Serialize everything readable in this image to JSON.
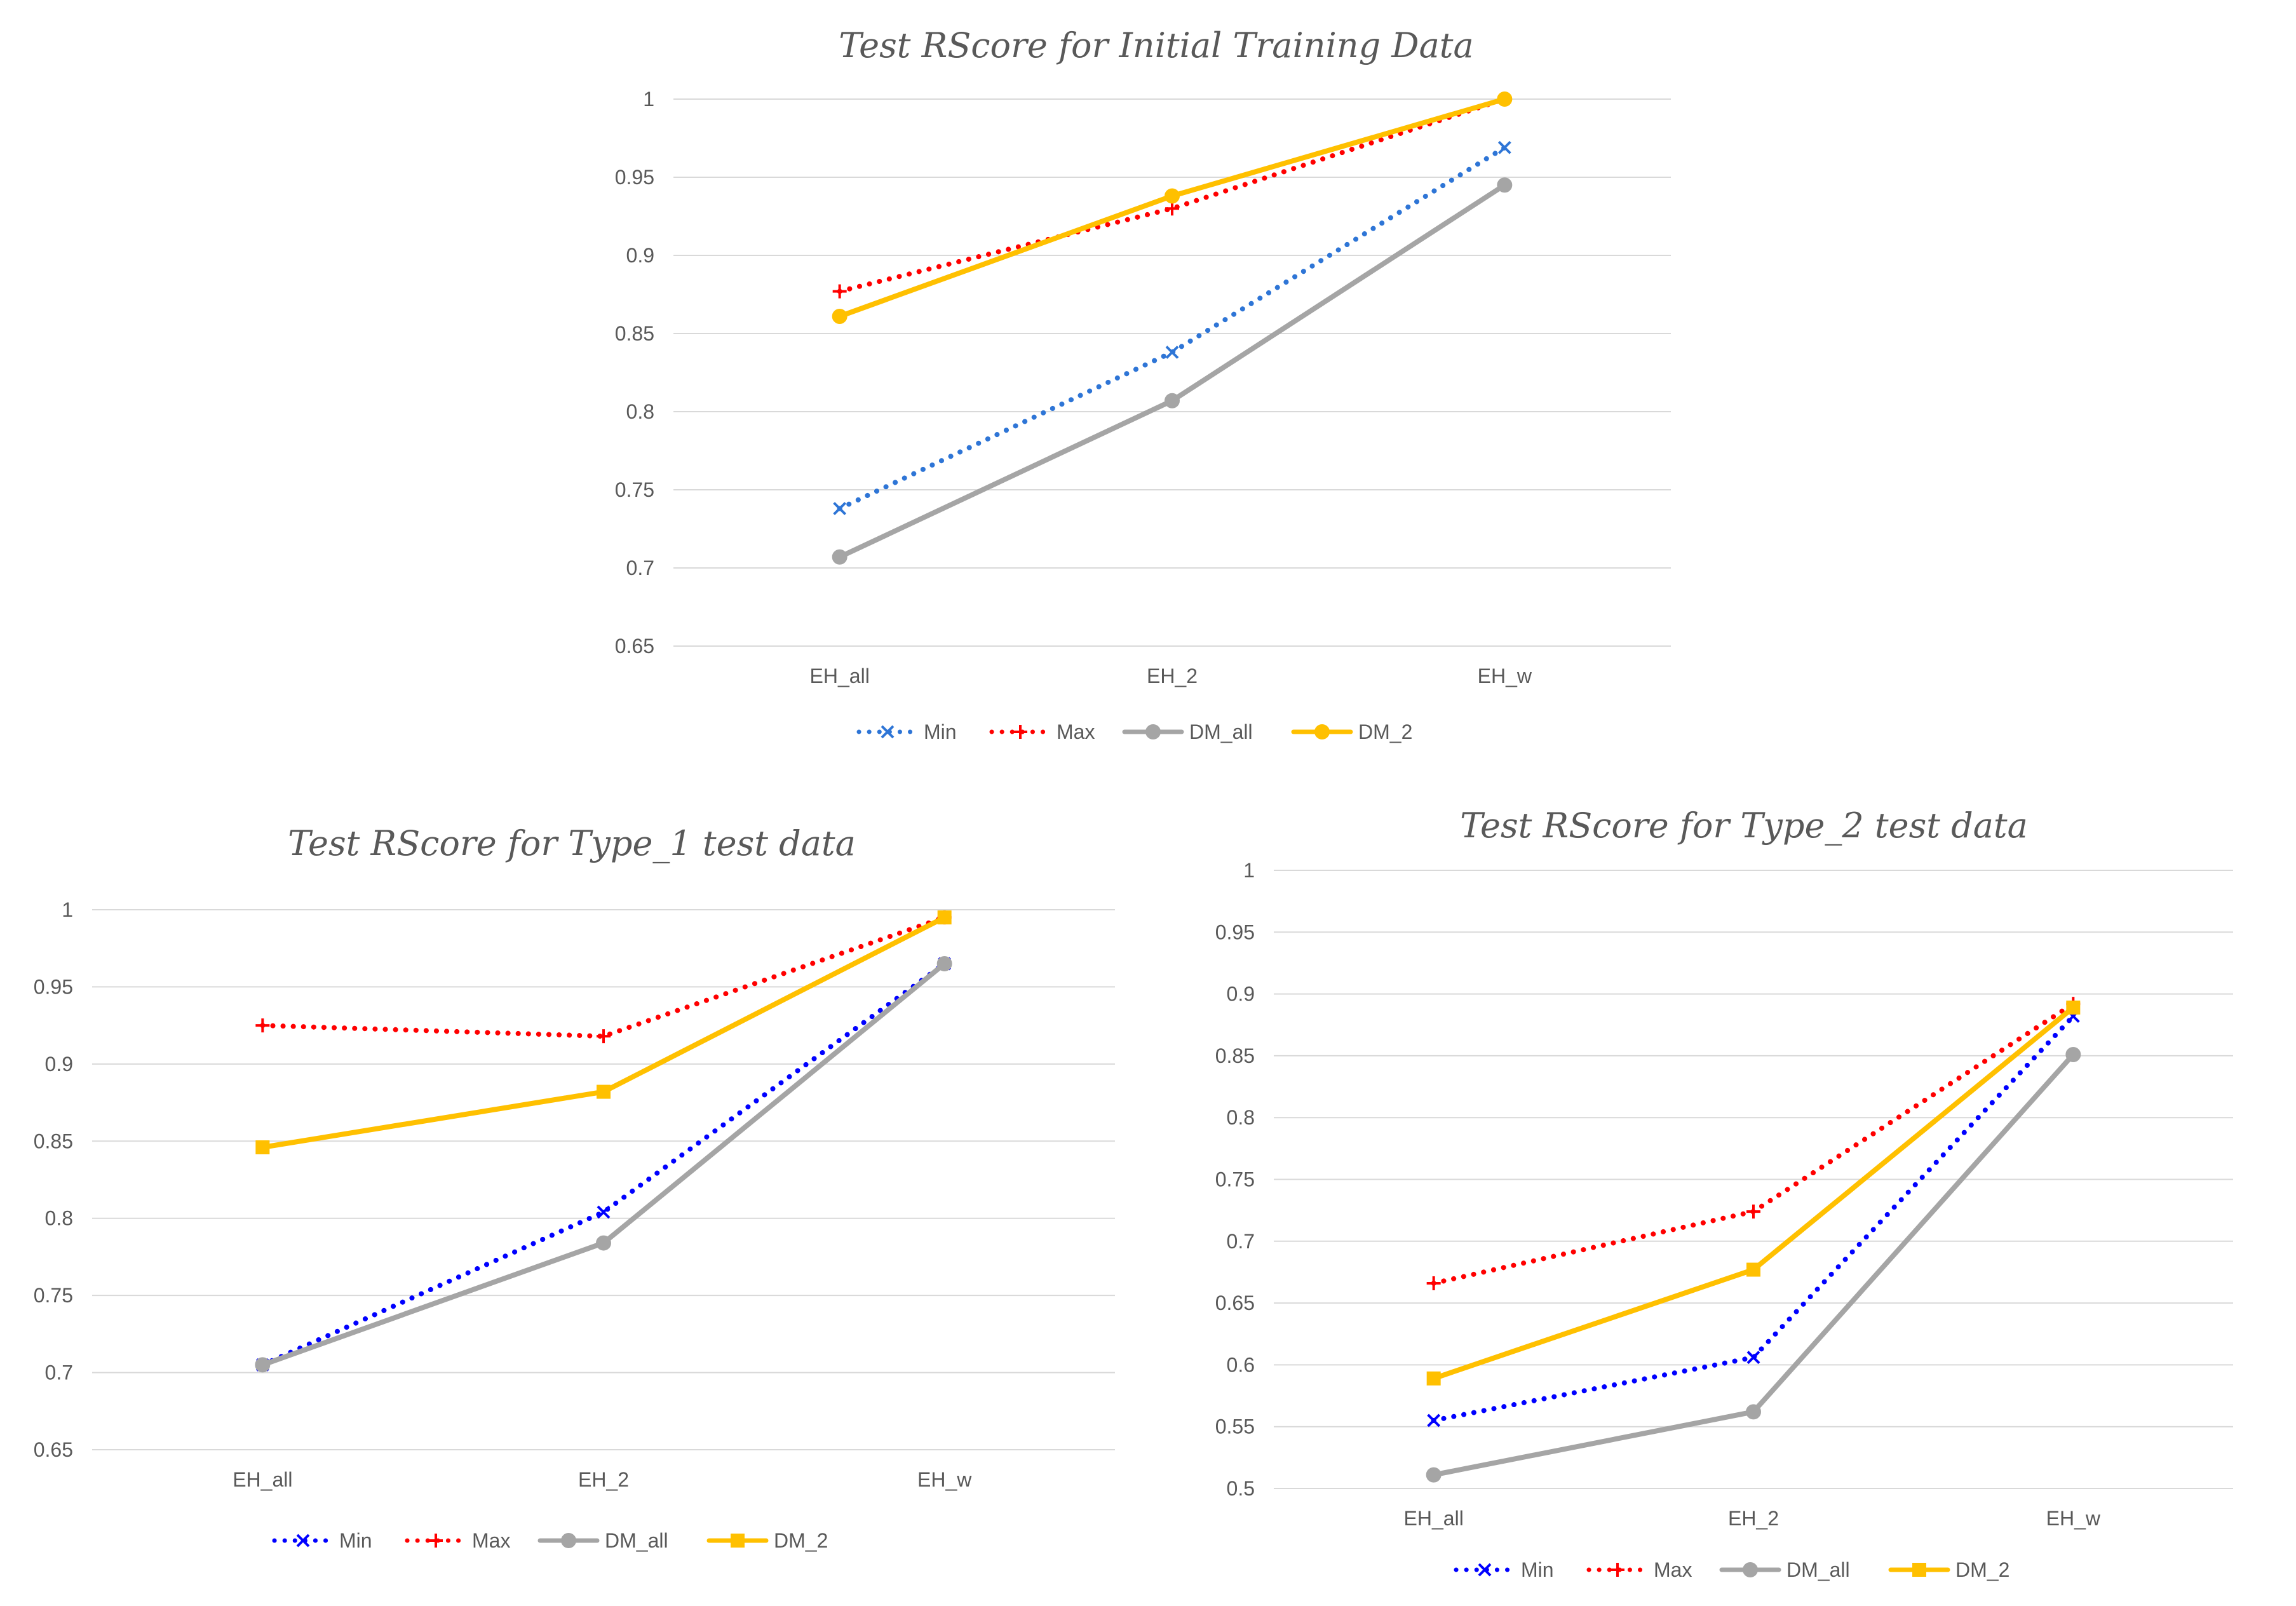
{
  "chart_data": [
    {
      "type": "line",
      "title": "Test RScore for Initial Training Data",
      "categories": [
        "EH_all",
        "EH_2",
        "EH_w"
      ],
      "xlabel": "",
      "ylabel": "",
      "ylim": [
        0.65,
        1
      ],
      "yticks": [
        0.65,
        0.7,
        0.75,
        0.8,
        0.85,
        0.9,
        0.95,
        1
      ],
      "ytick_labels": [
        "0.65",
        "0.7",
        "0.75",
        "0.8",
        "0.85",
        "0.9",
        "0.95",
        "1"
      ],
      "grid": true,
      "legend": "bottom",
      "series": [
        {
          "name": "Min",
          "values": [
            0.738,
            0.838,
            0.969
          ],
          "color": "#2E75D6",
          "style": "dotted",
          "marker": "x"
        },
        {
          "name": "Max",
          "values": [
            0.877,
            0.93,
            1.0
          ],
          "color": "#FF0000",
          "style": "dotted",
          "marker": "plus"
        },
        {
          "name": "DM_all",
          "values": [
            0.707,
            0.807,
            0.945
          ],
          "color": "#A5A5A5",
          "style": "solid",
          "marker": "circle"
        },
        {
          "name": "DM_2",
          "values": [
            0.861,
            0.938,
            1.0
          ],
          "color": "#FFC000",
          "style": "solid",
          "marker": "circle"
        }
      ]
    },
    {
      "type": "line",
      "title": "Test RScore for Type_1 test data",
      "categories": [
        "EH_all",
        "EH_2",
        "EH_w"
      ],
      "xlabel": "",
      "ylabel": "",
      "ylim": [
        0.65,
        1
      ],
      "yticks": [
        0.65,
        0.7,
        0.75,
        0.8,
        0.85,
        0.9,
        0.95,
        1
      ],
      "ytick_labels": [
        "0.65",
        "0.7",
        "0.75",
        "0.8",
        "0.85",
        "0.9",
        "0.95",
        "1"
      ],
      "grid": true,
      "legend": "bottom",
      "series": [
        {
          "name": "Min",
          "values": [
            0.705,
            0.804,
            0.965
          ],
          "color": "#0000FF",
          "style": "dotted",
          "marker": "x"
        },
        {
          "name": "Max",
          "values": [
            0.925,
            0.918,
            0.995
          ],
          "color": "#FF0000",
          "style": "dotted",
          "marker": "plus"
        },
        {
          "name": "DM_all",
          "values": [
            0.705,
            0.784,
            0.965
          ],
          "color": "#A5A5A5",
          "style": "solid",
          "marker": "circle"
        },
        {
          "name": "DM_2",
          "values": [
            0.846,
            0.882,
            0.995
          ],
          "color": "#FFC000",
          "style": "solid",
          "marker": "square"
        }
      ]
    },
    {
      "type": "line",
      "title": "Test RScore for Type_2 test data",
      "categories": [
        "EH_all",
        "EH_2",
        "EH_w"
      ],
      "xlabel": "",
      "ylabel": "",
      "ylim": [
        0.5,
        1
      ],
      "yticks": [
        0.5,
        0.55,
        0.6,
        0.65,
        0.7,
        0.75,
        0.8,
        0.85,
        0.9,
        0.95,
        1
      ],
      "ytick_labels": [
        "0.5",
        "0.55",
        "0.6",
        "0.65",
        "0.7",
        "0.75",
        "0.8",
        "0.85",
        "0.9",
        "0.95",
        "1"
      ],
      "grid": true,
      "legend": "bottom",
      "series": [
        {
          "name": "Min",
          "values": [
            0.555,
            0.606,
            0.882
          ],
          "color": "#0000FF",
          "style": "dotted",
          "marker": "x"
        },
        {
          "name": "Max",
          "values": [
            0.666,
            0.724,
            0.892
          ],
          "color": "#FF0000",
          "style": "dotted",
          "marker": "plus"
        },
        {
          "name": "DM_all",
          "values": [
            0.511,
            0.562,
            0.851
          ],
          "color": "#A5A5A5",
          "style": "solid",
          "marker": "circle"
        },
        {
          "name": "DM_2",
          "values": [
            0.589,
            0.677,
            0.889
          ],
          "color": "#FFC000",
          "style": "solid",
          "marker": "square"
        }
      ]
    }
  ],
  "colors": {
    "grid": "#D9D9D9",
    "text": "#595959",
    "background": "#FFFFFF"
  }
}
